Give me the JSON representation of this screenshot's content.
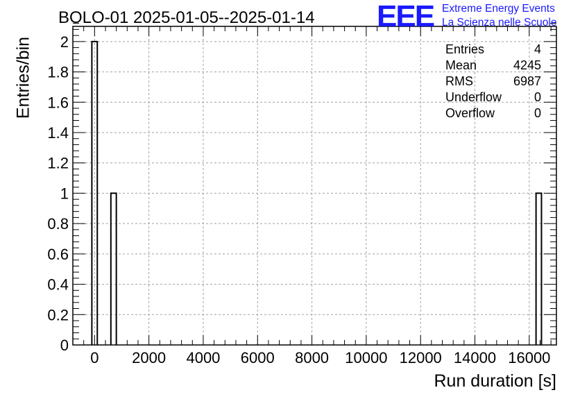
{
  "title": "BOLO-01 2025-01-05--2025-01-14",
  "logo": {
    "mark": "EEE",
    "line1": "Extreme Energy Events",
    "line2": "La Scienza nelle Scuole",
    "color": "#1a1aff"
  },
  "stats": [
    {
      "label": "Entries",
      "value": "4"
    },
    {
      "label": "Mean",
      "value": "4245"
    },
    {
      "label": "RMS",
      "value": "6987"
    },
    {
      "label": "Underflow",
      "value": "0"
    },
    {
      "label": "Overflow",
      "value": "0"
    }
  ],
  "chart_data": {
    "type": "bar",
    "title": "BOLO-01 2025-01-05--2025-01-14",
    "xlabel": "Run duration [s]",
    "ylabel": "Entries/bin",
    "xlim": [
      -800,
      17000
    ],
    "ylim": [
      0,
      2.1
    ],
    "grid": true,
    "xticks": [
      0,
      2000,
      4000,
      6000,
      8000,
      10000,
      12000,
      14000,
      16000
    ],
    "xtick_labels": [
      "0",
      "2000",
      "4000",
      "6000",
      "8000",
      "10000",
      "12000",
      "14000",
      "16000"
    ],
    "yticks": [
      0,
      0.2,
      0.4,
      0.6,
      0.8,
      1,
      1.2,
      1.4,
      1.6,
      1.8,
      2
    ],
    "ytick_labels": [
      "0",
      "0.2",
      "0.4",
      "0.6",
      "0.8",
      "1",
      "1.2",
      "1.4",
      "1.6",
      "1.8",
      "2"
    ],
    "bins": [
      {
        "low": -100,
        "high": 100,
        "value": 2
      },
      {
        "low": 600,
        "high": 800,
        "value": 1
      },
      {
        "low": 16250,
        "high": 16450,
        "value": 1
      }
    ]
  }
}
